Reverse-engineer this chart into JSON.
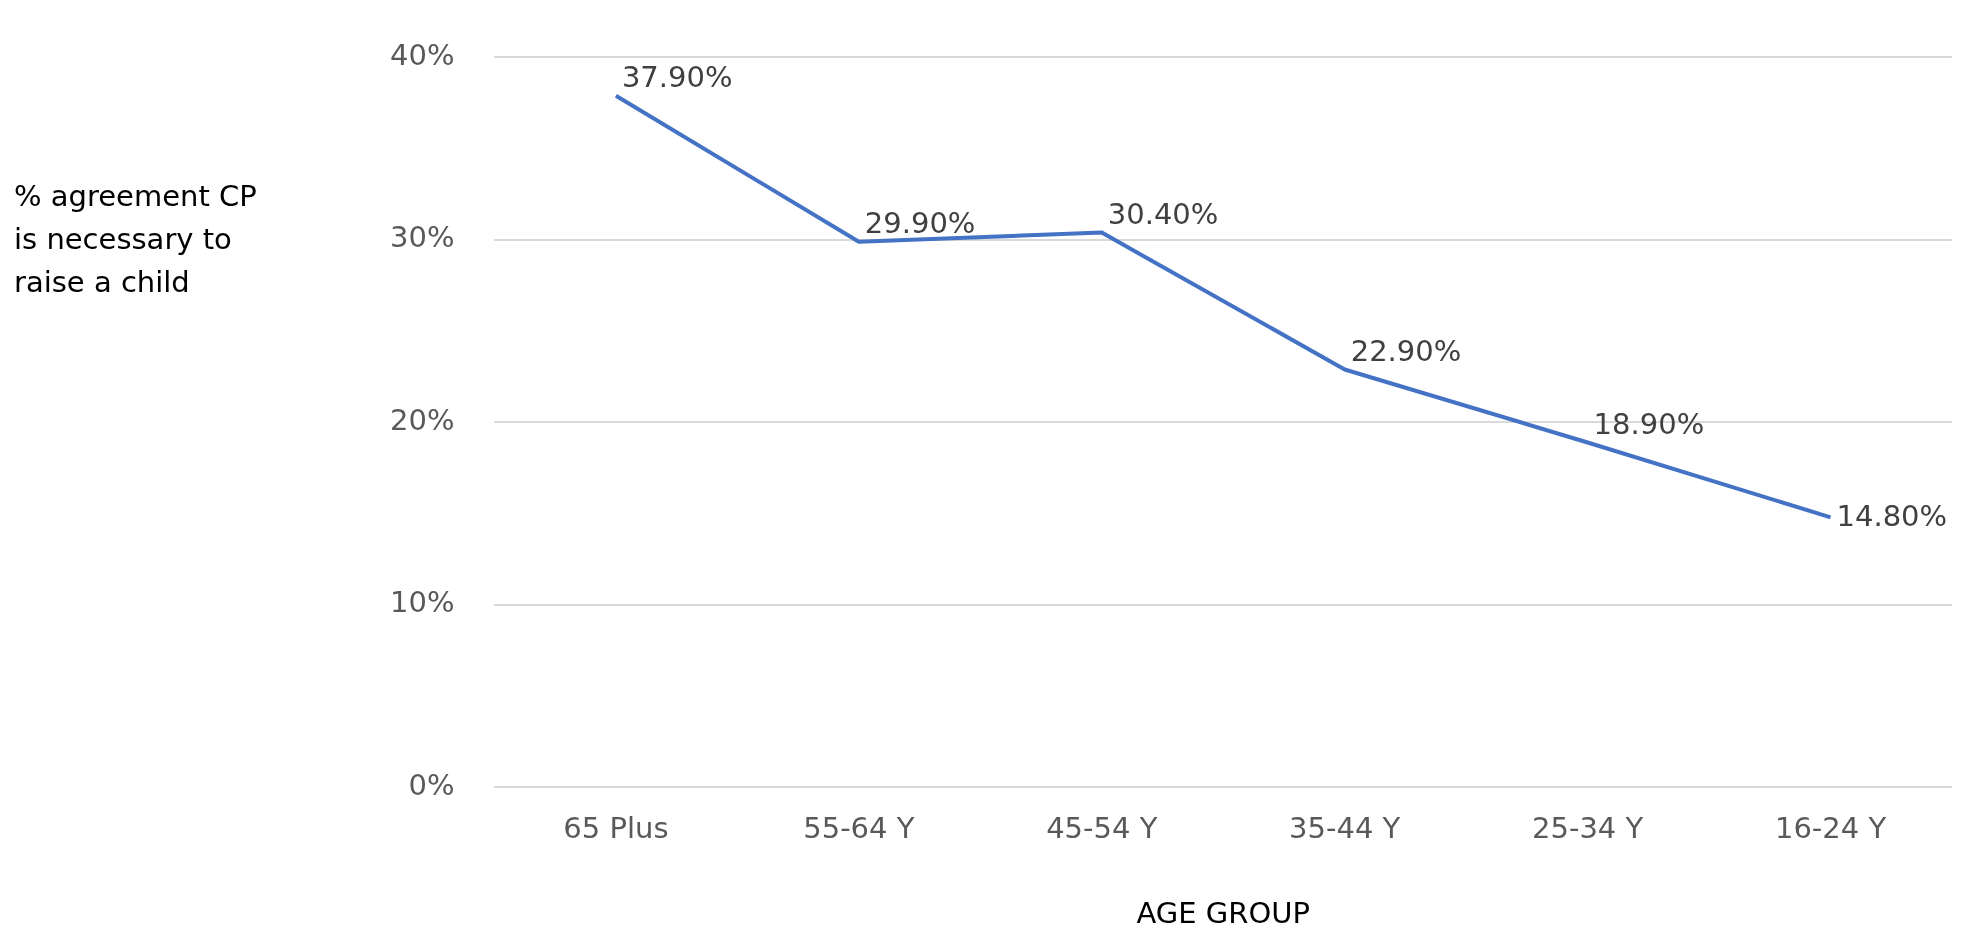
{
  "chart_data": {
    "type": "line",
    "ylabel": "% agreement CP is necessary to raise a child",
    "xlabel": "AGE GROUP",
    "categories": [
      "65 Plus",
      "55-64 Y",
      "45-54 Y",
      "35-44 Y",
      "25-34 Y",
      "16-24 Y"
    ],
    "values": [
      37.9,
      29.9,
      30.4,
      22.9,
      18.9,
      14.8
    ],
    "value_labels": [
      "37.90%",
      "29.90%",
      "30.40%",
      "22.90%",
      "18.90%",
      "14.80%"
    ],
    "color": "#4472c4",
    "ylim": [
      0,
      40
    ],
    "yticks": [
      {
        "value": 0,
        "label": "0%"
      },
      {
        "value": 10,
        "label": "10%"
      },
      {
        "value": 20,
        "label": "20%"
      },
      {
        "value": 30,
        "label": "30%"
      },
      {
        "value": 40,
        "label": "40%"
      }
    ],
    "grid": "y",
    "marker": "none",
    "line_style": "solid",
    "legend": false
  }
}
